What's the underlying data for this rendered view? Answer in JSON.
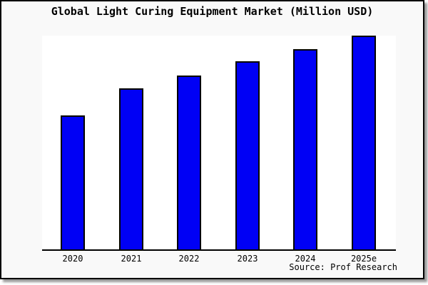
{
  "window": {
    "title": "Global Light Curing Equipment Market (Million USD)"
  },
  "chart_data": {
    "type": "bar",
    "title": "Global Light Curing Equipment Market (Million USD)",
    "categories": [
      "2020",
      "2021",
      "2022",
      "2023",
      "2024",
      "2025e"
    ],
    "values": [
      62.7,
      75.3,
      81.3,
      88.0,
      93.7,
      100.0
    ],
    "values_note": "No y-axis ticks, gridlines or data labels are shown in the image; values are relative bar heights normalized so 2025e = 100.",
    "xlabel": "",
    "ylabel": "",
    "ylim": [
      0,
      100
    ],
    "grid": false,
    "legend": false,
    "bar_color": "#0000f5",
    "bar_border_color": "#000000"
  },
  "footer": {
    "source": "Source: Prof Research"
  },
  "colors": {
    "card_background": "#f9f9f9",
    "plot_background": "#ffffff",
    "bar_fill": "#0000f5",
    "text": "#000000",
    "border": "#000000",
    "shadow": "#999999"
  }
}
